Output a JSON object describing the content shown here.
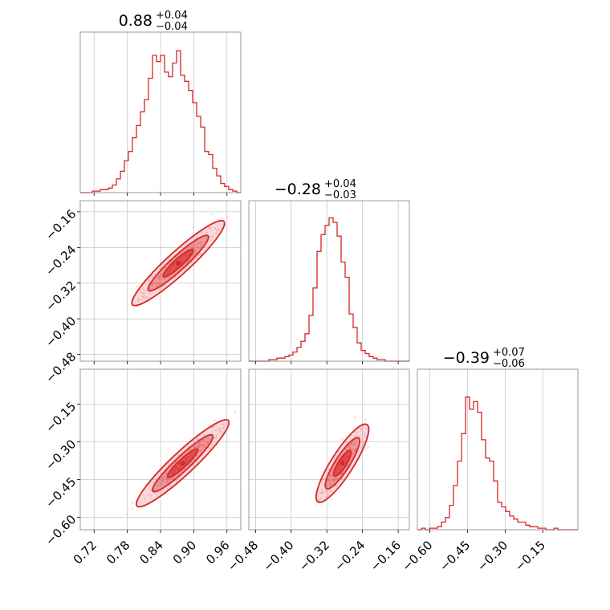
{
  "chart_data": {
    "type": "corner",
    "color": "#d62728",
    "parameters": [
      {
        "title_value": "0.88",
        "err_plus": "+0.04",
        "err_minus": "−0.04",
        "range": [
          0.695,
          0.985
        ],
        "ticks": [
          0.72,
          0.78,
          0.84,
          0.9,
          0.96
        ],
        "tick_labels": [
          "0.72",
          "0.78",
          "0.84",
          "0.90",
          "0.96"
        ],
        "hist": [
          0,
          0,
          0,
          0.01,
          0.01,
          0.02,
          0.02,
          0.03,
          0.05,
          0.09,
          0.14,
          0.21,
          0.27,
          0.36,
          0.44,
          0.53,
          0.61,
          0.75,
          0.9,
          0.86,
          0.9,
          0.79,
          0.76,
          0.85,
          0.93,
          0.77,
          0.73,
          0.67,
          0.59,
          0.5,
          0.43,
          0.27,
          0.25,
          0.16,
          0.11,
          0.06,
          0.04,
          0.02,
          0.01,
          0
        ]
      },
      {
        "title_value": "−0.28",
        "err_plus": "+0.04",
        "err_minus": "−0.03",
        "range": [
          -0.495,
          -0.135
        ],
        "ticks": [
          -0.48,
          -0.4,
          -0.32,
          -0.24,
          -0.16
        ],
        "tick_labels": [
          "−0.48",
          "−0.40",
          "−0.32",
          "−0.24",
          "−0.16"
        ],
        "hist": [
          0,
          0,
          0,
          0,
          0,
          0.01,
          0.01,
          0.02,
          0.02,
          0.03,
          0.04,
          0.06,
          0.09,
          0.13,
          0.18,
          0.3,
          0.48,
          0.72,
          0.83,
          0.89,
          0.94,
          0.91,
          0.82,
          0.65,
          0.55,
          0.31,
          0.22,
          0.12,
          0.07,
          0.05,
          0.03,
          0.02,
          0.01,
          0.01,
          0,
          0,
          0,
          0,
          0,
          0
        ]
      },
      {
        "title_value": "−0.39",
        "err_plus": "+0.07",
        "err_minus": "−0.06",
        "range": [
          -0.65,
          -0.01
        ],
        "ticks": [
          -0.6,
          -0.45,
          -0.3,
          -0.15
        ],
        "tick_labels": [
          "−0.60",
          "−0.45",
          "−0.30",
          "−0.15"
        ],
        "hist": [
          0,
          0.01,
          0,
          0.01,
          0.01,
          0.02,
          0.05,
          0.08,
          0.16,
          0.29,
          0.45,
          0.63,
          0.87,
          0.79,
          0.84,
          0.77,
          0.59,
          0.47,
          0.45,
          0.32,
          0.18,
          0.15,
          0.12,
          0.09,
          0.07,
          0.05,
          0.05,
          0.03,
          0.02,
          0.02,
          0.01,
          0.01,
          0,
          0,
          0.01,
          0,
          0,
          0,
          0,
          0
        ]
      }
    ],
    "pairs": [
      {
        "x_param": 0,
        "y_param": 1,
        "ylim": [
          -0.495,
          -0.135
        ],
        "yticks": [
          -0.16,
          -0.24,
          -0.32,
          -0.4,
          -0.48
        ],
        "ytick_labels": [
          "−0.16",
          "−0.24",
          "−0.32",
          "−0.40",
          "−0.48"
        ],
        "trend": [
          [
            0.82,
            -0.335
          ],
          [
            0.97,
            -0.165
          ]
        ],
        "center": [
          0.872,
          -0.275
        ]
      },
      {
        "x_param": 0,
        "y_param": 2,
        "ylim": [
          -0.65,
          -0.01
        ],
        "yticks": [
          -0.15,
          -0.3,
          -0.45,
          -0.6
        ],
        "ytick_labels": [
          "−0.15",
          "−0.30",
          "−0.45",
          "−0.60"
        ],
        "trend": [
          [
            0.81,
            -0.53
          ],
          [
            0.96,
            -0.22
          ]
        ],
        "center": [
          0.88,
          -0.385
        ]
      },
      {
        "x_param": 1,
        "y_param": 2,
        "ylim": [
          -0.65,
          -0.01
        ],
        "trend": [
          [
            -0.33,
            -0.5
          ],
          [
            -0.23,
            -0.22
          ]
        ],
        "center": [
          -0.285,
          -0.385
        ]
      }
    ]
  }
}
